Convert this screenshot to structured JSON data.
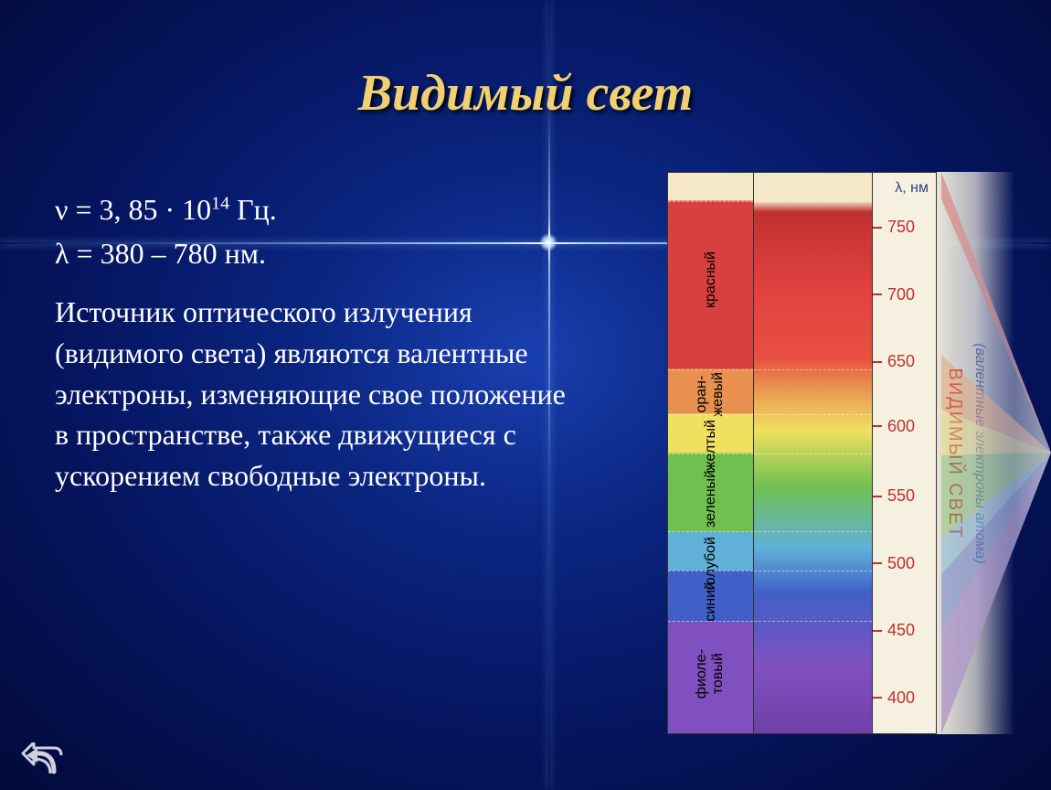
{
  "title": "Видимый свет",
  "formula_freq": "ν = 3, 85 · 10",
  "formula_freq_exp": "14",
  "formula_freq_unit": " Гц.",
  "formula_wave": "λ = 380 – 780 нм.",
  "body_text": "Источник оптического излучения (видимого света) являются валентные электроны, изменяющие свое положение в пространстве, также движущиеся с ускорением свободные электроны.",
  "spectrum": {
    "scale_unit": "λ, нм",
    "ticks": [
      {
        "label": "750",
        "pos_pct": 8
      },
      {
        "label": "700",
        "pos_pct": 20
      },
      {
        "label": "650",
        "pos_pct": 32
      },
      {
        "label": "600",
        "pos_pct": 43.5
      },
      {
        "label": "550",
        "pos_pct": 56
      },
      {
        "label": "500",
        "pos_pct": 68
      },
      {
        "label": "450",
        "pos_pct": 80
      },
      {
        "label": "400",
        "pos_pct": 92
      }
    ],
    "color_labels": [
      {
        "text": "красный",
        "top_pct": 14,
        "two_line": false
      },
      {
        "text": "оран-\nжевый",
        "top_pct": 35.5,
        "two_line": true
      },
      {
        "text": "желтый",
        "top_pct": 44,
        "two_line": false
      },
      {
        "text": "зеленый",
        "top_pct": 53,
        "two_line": false
      },
      {
        "text": "голубой",
        "top_pct": 65,
        "two_line": false
      },
      {
        "text": "синий",
        "top_pct": 73,
        "two_line": false
      },
      {
        "text": "фиоле-\nтовый",
        "top_pct": 85,
        "two_line": true
      }
    ],
    "dashed_lines_pct": [
      5,
      35,
      43,
      50,
      64,
      71,
      80
    ],
    "side_label_main": "ВИДИМЫЙ СВЕТ",
    "side_label_sub": "(валентные электроны атома)",
    "gradient_stops": [
      {
        "color": "#f5e8c8",
        "pct": 0
      },
      {
        "color": "#d84040",
        "pct": 10
      },
      {
        "color": "#e85040",
        "pct": 33
      },
      {
        "color": "#e89050",
        "pct": 38
      },
      {
        "color": "#f0e060",
        "pct": 46
      },
      {
        "color": "#70c050",
        "pct": 56
      },
      {
        "color": "#60b0d8",
        "pct": 67
      },
      {
        "color": "#4060c8",
        "pct": 75
      },
      {
        "color": "#8050c0",
        "pct": 90
      }
    ]
  },
  "back_button_label": "Назад"
}
